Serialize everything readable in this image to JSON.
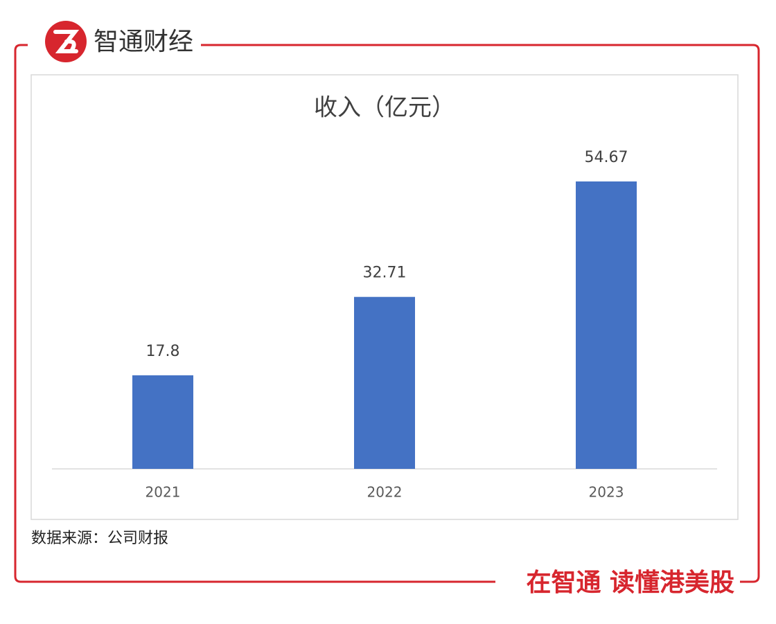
{
  "header": {
    "brand": "智通财经"
  },
  "chart_data": {
    "type": "bar",
    "title": "收入（亿元）",
    "categories": [
      "2021",
      "2022",
      "2023"
    ],
    "values": [
      17.8,
      32.71,
      54.67
    ],
    "color": "#4472c4"
  },
  "source": "数据来源：公司财报",
  "slogan": "在智通 读懂港美股"
}
